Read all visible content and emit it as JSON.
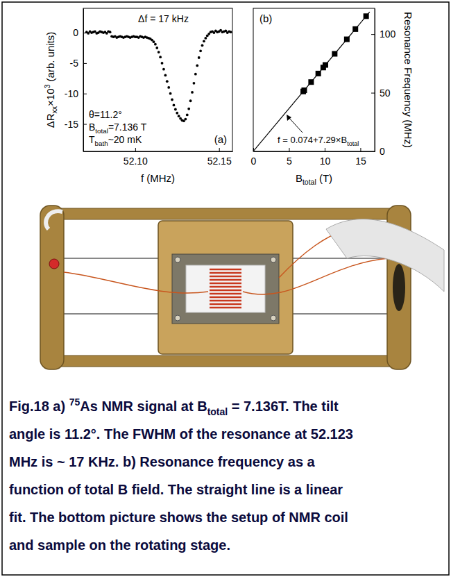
{
  "chart_data": [
    {
      "type": "scatter",
      "panel_label": "(a)",
      "annotations": [
        [
          {
            "text": "Δf = 17 kHz"
          }
        ],
        [
          {
            "text": "θ=11.2°"
          }
        ],
        [
          {
            "text": "B"
          },
          {
            "sub": "total"
          },
          {
            "text": "=7.136 T"
          }
        ],
        [
          {
            "text": "T"
          },
          {
            "sub": "bath"
          },
          {
            "text": "~20 mK"
          }
        ]
      ],
      "x_label": [
        {
          "text": "f (MHz)"
        }
      ],
      "y_label": [
        {
          "text": "ΔR"
        },
        {
          "sub": "xx"
        },
        {
          "text": "×10"
        },
        {
          "sup": "3"
        },
        {
          "text": " (arb. units)"
        }
      ],
      "marker": "circle",
      "color": "#000000",
      "x": [
        52.071,
        52.072,
        52.073,
        52.074,
        52.075,
        52.076,
        52.077,
        52.078,
        52.079,
        52.08,
        52.081,
        52.082,
        52.083,
        52.084,
        52.085,
        52.086,
        52.087,
        52.088,
        52.089,
        52.09,
        52.091,
        52.092,
        52.093,
        52.094,
        52.095,
        52.096,
        52.097,
        52.098,
        52.099,
        52.1,
        52.101,
        52.102,
        52.103,
        52.104,
        52.105,
        52.106,
        52.107,
        52.108,
        52.109,
        52.11,
        52.111,
        52.112,
        52.113,
        52.114,
        52.115,
        52.116,
        52.117,
        52.118,
        52.119,
        52.12,
        52.121,
        52.122,
        52.123,
        52.124,
        52.125,
        52.126,
        52.127,
        52.128,
        52.129,
        52.13,
        52.131,
        52.132,
        52.133,
        52.134,
        52.135,
        52.136,
        52.137,
        52.138,
        52.139,
        52.14,
        52.141,
        52.142,
        52.143,
        52.144,
        52.145,
        52.146,
        52.147,
        52.148,
        52.149,
        52.15,
        52.151,
        52.152,
        52.153,
        52.154,
        52.155,
        52.156,
        52.157
      ],
      "values": [
        0.1,
        -0.1,
        0.2,
        0,
        0.1,
        0.2,
        -0.1,
        0,
        0.2,
        0.1,
        0,
        0.1,
        -0.1,
        0.2,
        0.1,
        -0.6,
        -0.7,
        -0.6,
        -0.8,
        -0.7,
        -0.6,
        -0.7,
        -0.8,
        -0.7,
        -0.6,
        -0.7,
        -0.8,
        -0.7,
        -0.6,
        -0.7,
        -0.7,
        -0.8,
        -0.6,
        -0.7,
        -0.8,
        -0.7,
        -0.8,
        -0.9,
        -1,
        -1.2,
        -1.5,
        -1.9,
        -2.5,
        -3.2,
        -4,
        -5,
        -6,
        -7,
        -8,
        -9,
        -10,
        -11,
        -11.9,
        -12.6,
        -13.2,
        -13.7,
        -14.1,
        -14.4,
        -14.5,
        -14.2,
        -13.5,
        -12.5,
        -11.2,
        -9.8,
        -8.3,
        -6.8,
        -5.4,
        -4.1,
        -3,
        -2.1,
        -1.4,
        -0.9,
        -0.5,
        -0.2,
        0.1,
        0.2,
        0,
        0.3,
        0.1,
        0.2,
        0.4,
        0.1,
        0.2,
        0.3,
        0,
        0.2,
        0.1
      ],
      "xlim": [
        52.069,
        52.158
      ],
      "xticks": [
        {
          "value": 52.1,
          "label": "52.10"
        },
        {
          "value": 52.15,
          "label": "52.15"
        }
      ],
      "ylim": [
        -19.5,
        4
      ],
      "yticks": [
        0,
        -5,
        -10,
        -15
      ]
    },
    {
      "type": "scatter",
      "panel_label": "(b)",
      "annotations": [
        [
          {
            "text": "f = 0.074+7.29×B"
          },
          {
            "sub": "total"
          }
        ]
      ],
      "x_label": [
        {
          "text": "B"
        },
        {
          "sub": "total"
        },
        {
          "text": " (T)"
        }
      ],
      "y_label": [
        {
          "text": "Resonance Frequency (MHz)"
        }
      ],
      "series": [
        {
          "type": "scatter",
          "marker": "square",
          "color": "#000000",
          "x": [
            7.0,
            7.136,
            8.1,
            9.1,
            9.8,
            10.1,
            11.4,
            13.1,
            14.3,
            15.8
          ],
          "values": [
            51.1,
            52.1,
            59.1,
            66.4,
            71.5,
            73.7,
            83.2,
            95.6,
            104.3,
            115.3
          ]
        },
        {
          "type": "line",
          "line_style": "solid",
          "color": "#000000",
          "x": [
            0,
            16.3
          ],
          "values": [
            0.074,
            118.9
          ]
        }
      ],
      "xlim": [
        0,
        17
      ],
      "xticks": [
        0,
        5,
        10,
        15
      ],
      "ylim": [
        0,
        122
      ],
      "yticks": [
        0,
        50,
        100
      ]
    }
  ],
  "caption": {
    "lines": [
      [
        {
          "text": "Fig.18 a) "
        },
        {
          "sup": "75"
        },
        {
          "text": "As NMR signal at B"
        },
        {
          "sub": "total"
        },
        {
          "text": " = 7.136T. The tilt"
        }
      ],
      [
        {
          "text": "angle is 11.2°. The FWHM of the resonance at 52.123"
        }
      ],
      [
        {
          "text": "MHz is ~ 17 KHz. b) Resonance frequency as a"
        }
      ],
      [
        {
          "text": "function of total B field. The straight line is a linear"
        }
      ],
      [
        {
          "text": "fit. The bottom picture shows the setup of NMR coil"
        }
      ],
      [
        {
          "text": "and sample on the rotating stage."
        }
      ]
    ]
  }
}
